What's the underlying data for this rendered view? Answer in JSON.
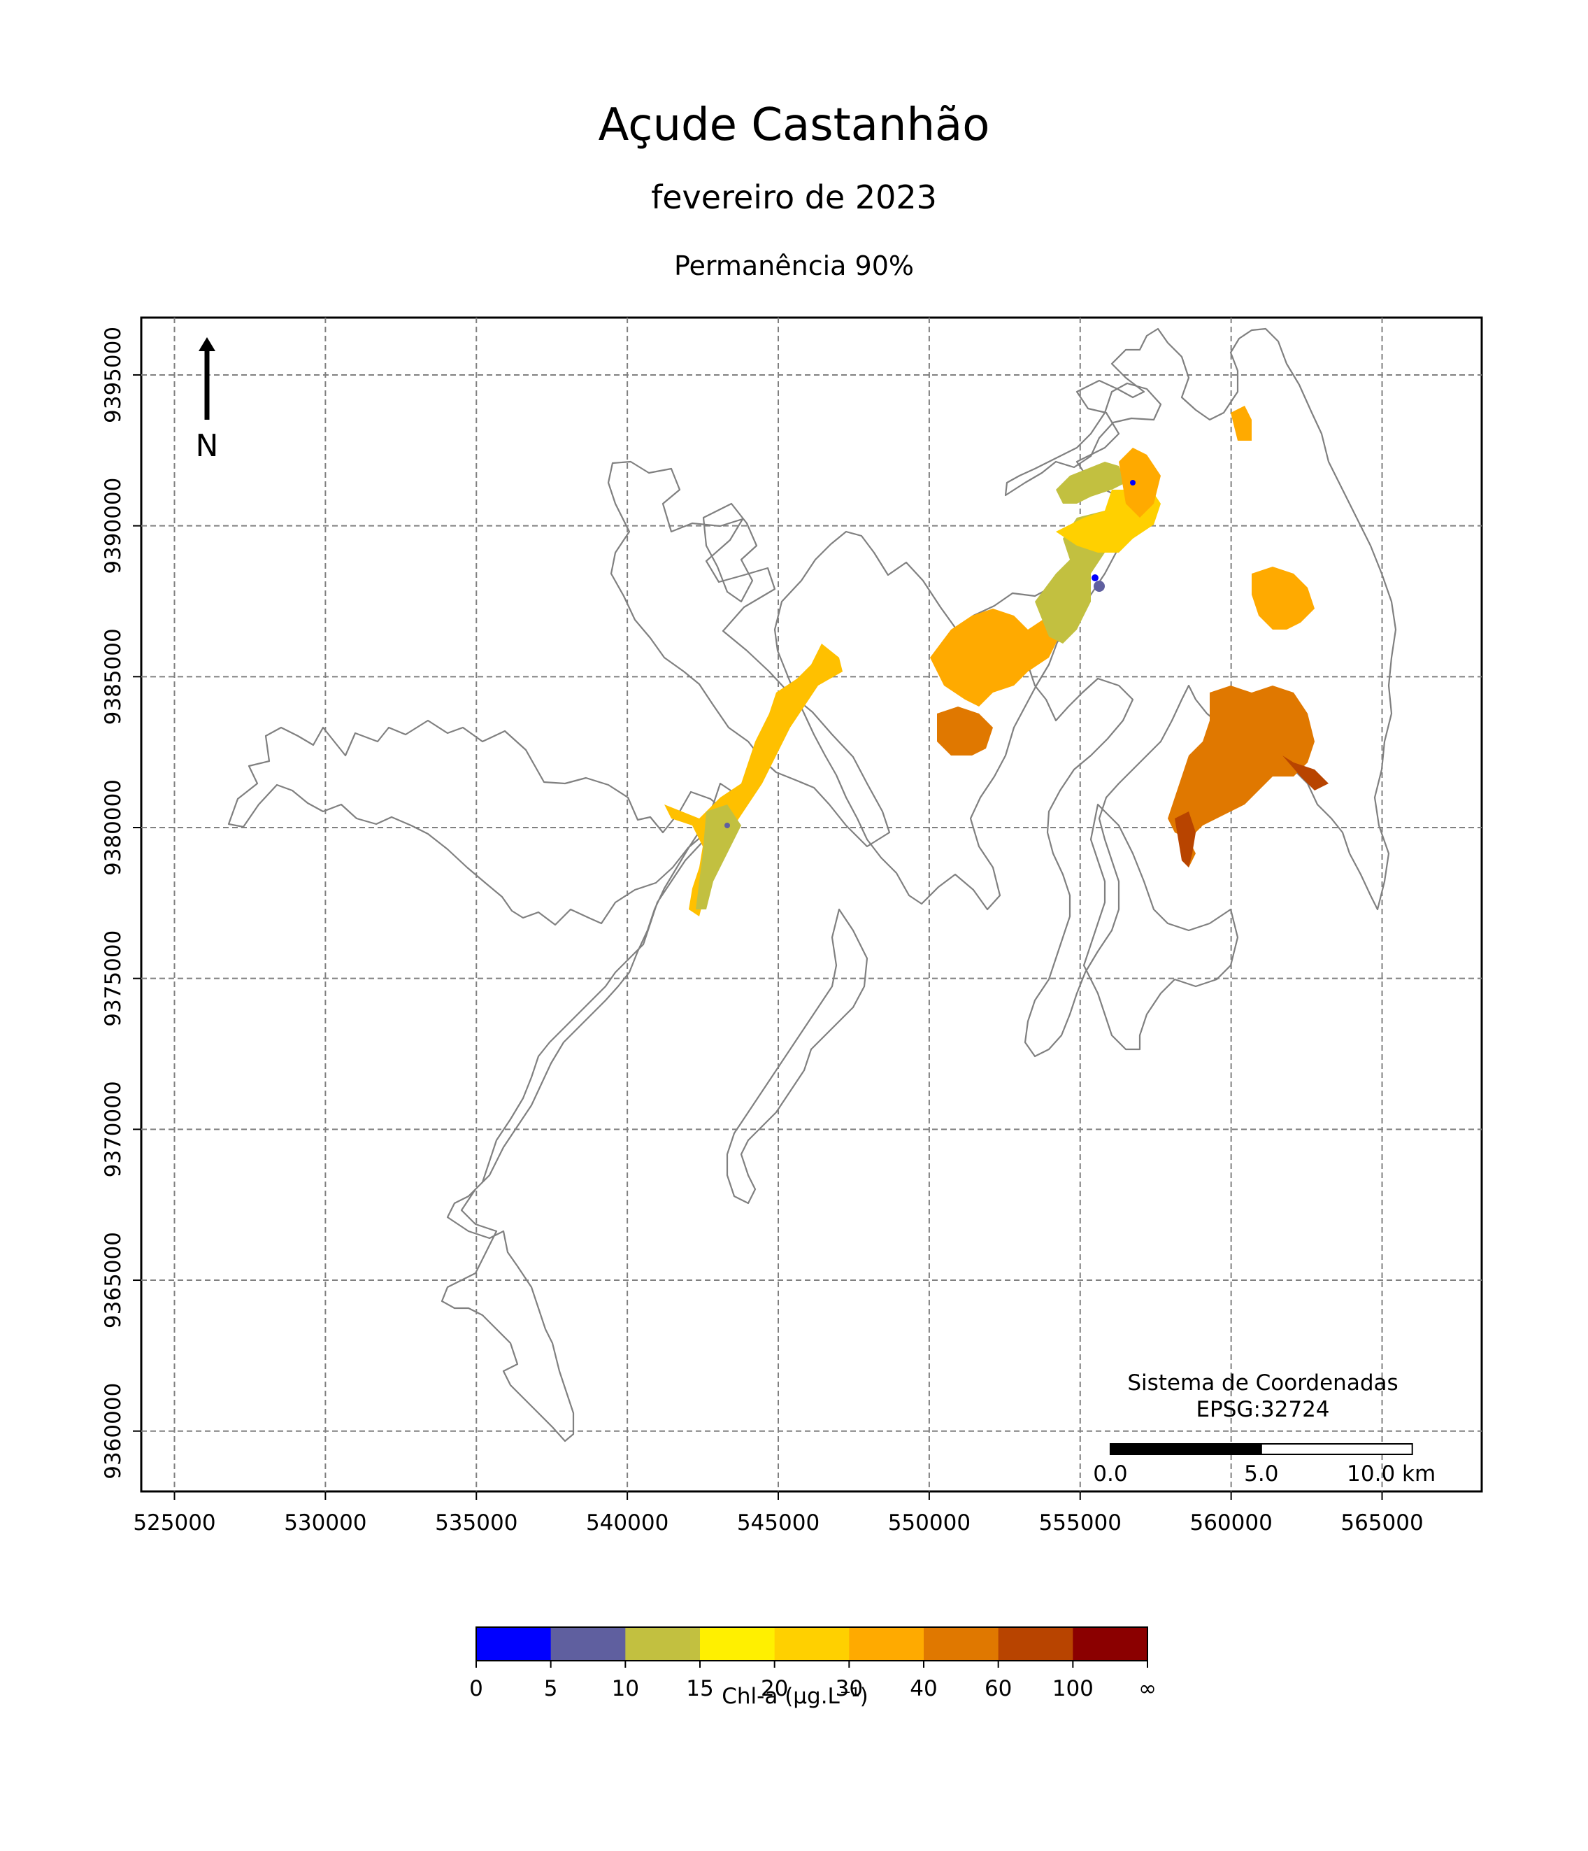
{
  "title": "Açude Castanhão",
  "subtitle": "fevereiro de 2023",
  "permanence": "Permanência 90%",
  "north_label": "N",
  "crs": {
    "line1": "Sistema de Coordenadas",
    "line2": "EPSG:32724"
  },
  "scalebar": {
    "labels": [
      "0.0",
      "5.0",
      "10.0 km"
    ],
    "km": 10
  },
  "axes": {
    "x_ticks": [
      "525000",
      "530000",
      "535000",
      "540000",
      "545000",
      "550000",
      "555000",
      "560000",
      "565000"
    ],
    "y_ticks": [
      "9395000",
      "9390000",
      "9385000",
      "9380000",
      "9375000",
      "9370000",
      "9365000",
      "9360000"
    ],
    "xlim": [
      523900,
      568300
    ],
    "ylim": [
      9358000,
      9396900
    ],
    "grid": true
  },
  "colorbar": {
    "label": "Chl-a (μg.L⁻¹)",
    "ticks": [
      "0",
      "5",
      "10",
      "15",
      "20",
      "30",
      "40",
      "60",
      "100",
      "∞"
    ],
    "colors": [
      "#0000ff",
      "#5f5f9f",
      "#c2c040",
      "#fff000",
      "#ffd000",
      "#ffaa00",
      "#e07800",
      "#b84400",
      "#8b0000"
    ]
  },
  "colors": {
    "reservoir_outline": "#808080",
    "grid": "#808080"
  }
}
